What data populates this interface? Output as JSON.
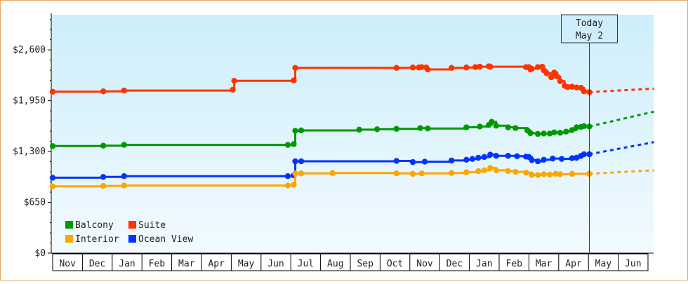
{
  "chart_data": {
    "type": "line",
    "title": "",
    "xlabel": "",
    "ylabel": "",
    "y_ticks": [
      "$0",
      "$650",
      "$1,300",
      "$1,950",
      "$2,600"
    ],
    "y_tick_values": [
      0,
      650,
      1300,
      1950,
      2600
    ],
    "ylim": [
      0,
      3050
    ],
    "x_tick_labels": [
      "Nov",
      "Dec",
      "Jan",
      "Feb",
      "Mar",
      "Apr",
      "May",
      "Jun",
      "Jul",
      "Aug",
      "Sep",
      "Oct",
      "Nov",
      "Dec",
      "Jan",
      "Feb",
      "Mar",
      "Apr",
      "May",
      "Jun"
    ],
    "xlim": [
      0,
      20
    ],
    "grid": false,
    "legend_position": "bottom-left",
    "today": {
      "line1": "Today",
      "line2": "May 2",
      "x": 18.03
    },
    "colors": {
      "Balcony": "#009900",
      "Suite": "#ff3300",
      "Interior": "#ffa500",
      "Ocean View": "#0033ff",
      "bg_top": "#cdeefa",
      "bg_bottom": "#f2faff"
    },
    "series": [
      {
        "name": "Suite",
        "points": [
          [
            0,
            2065
          ],
          [
            1.7,
            2070
          ],
          [
            2.4,
            2080
          ],
          [
            6.05,
            2090
          ],
          [
            6.1,
            2205
          ],
          [
            8.1,
            2210
          ],
          [
            8.15,
            2370
          ],
          [
            11.55,
            2370
          ],
          [
            12.1,
            2375
          ],
          [
            12.3,
            2375
          ],
          [
            12.4,
            2380
          ],
          [
            12.55,
            2375
          ],
          [
            12.6,
            2350
          ],
          [
            13.4,
            2370
          ],
          [
            13.9,
            2375
          ],
          [
            14.2,
            2380
          ],
          [
            14.35,
            2385
          ],
          [
            14.65,
            2390
          ],
          [
            14.7,
            2385
          ],
          [
            15.9,
            2380
          ],
          [
            16.0,
            2380
          ],
          [
            16.05,
            2350
          ],
          [
            16.1,
            2360
          ],
          [
            16.3,
            2380
          ],
          [
            16.45,
            2385
          ],
          [
            16.5,
            2340
          ],
          [
            16.6,
            2300
          ],
          [
            16.75,
            2250
          ],
          [
            16.85,
            2310
          ],
          [
            16.95,
            2260
          ],
          [
            17.05,
            2200
          ],
          [
            17.2,
            2140
          ],
          [
            17.3,
            2125
          ],
          [
            17.45,
            2130
          ],
          [
            17.6,
            2120
          ],
          [
            17.75,
            2115
          ],
          [
            17.85,
            2070
          ],
          [
            18.03,
            2060
          ]
        ],
        "projection": [
          [
            18.03,
            2060
          ],
          [
            20.2,
            2105
          ]
        ]
      },
      {
        "name": "Balcony",
        "points": [
          [
            0,
            1370
          ],
          [
            1.7,
            1375
          ],
          [
            2.4,
            1385
          ],
          [
            7.9,
            1385
          ],
          [
            8.1,
            1395
          ],
          [
            8.15,
            1565
          ],
          [
            8.35,
            1570
          ],
          [
            10.3,
            1580
          ],
          [
            10.9,
            1585
          ],
          [
            11.55,
            1590
          ],
          [
            12.35,
            1600
          ],
          [
            12.6,
            1595
          ],
          [
            13.9,
            1610
          ],
          [
            14.35,
            1620
          ],
          [
            14.65,
            1640
          ],
          [
            14.75,
            1680
          ],
          [
            14.9,
            1630
          ],
          [
            15.3,
            1610
          ],
          [
            15.55,
            1600
          ],
          [
            15.95,
            1570
          ],
          [
            16.05,
            1535
          ],
          [
            16.3,
            1525
          ],
          [
            16.5,
            1530
          ],
          [
            16.7,
            1530
          ],
          [
            16.85,
            1545
          ],
          [
            17.05,
            1540
          ],
          [
            17.25,
            1555
          ],
          [
            17.45,
            1575
          ],
          [
            17.6,
            1610
          ],
          [
            17.75,
            1615
          ],
          [
            17.85,
            1625
          ],
          [
            18.03,
            1620
          ]
        ],
        "projection": [
          [
            18.03,
            1620
          ],
          [
            20.2,
            1810
          ]
        ]
      },
      {
        "name": "Ocean View",
        "points": [
          [
            0,
            965
          ],
          [
            1.7,
            975
          ],
          [
            2.4,
            985
          ],
          [
            7.9,
            985
          ],
          [
            8.1,
            995
          ],
          [
            8.15,
            1175
          ],
          [
            8.35,
            1175
          ],
          [
            11.55,
            1180
          ],
          [
            12.1,
            1165
          ],
          [
            12.5,
            1170
          ],
          [
            13.4,
            1185
          ],
          [
            13.9,
            1195
          ],
          [
            14.1,
            1205
          ],
          [
            14.3,
            1220
          ],
          [
            14.5,
            1230
          ],
          [
            14.7,
            1260
          ],
          [
            14.9,
            1245
          ],
          [
            15.3,
            1245
          ],
          [
            15.6,
            1240
          ],
          [
            15.9,
            1235
          ],
          [
            16.0,
            1230
          ],
          [
            16.1,
            1190
          ],
          [
            16.3,
            1175
          ],
          [
            16.5,
            1195
          ],
          [
            16.8,
            1210
          ],
          [
            17.1,
            1205
          ],
          [
            17.45,
            1215
          ],
          [
            17.6,
            1220
          ],
          [
            17.75,
            1245
          ],
          [
            17.85,
            1265
          ],
          [
            18.03,
            1265
          ]
        ],
        "projection": [
          [
            18.03,
            1265
          ],
          [
            20.2,
            1420
          ]
        ]
      },
      {
        "name": "Interior",
        "points": [
          [
            0,
            855
          ],
          [
            1.7,
            860
          ],
          [
            2.4,
            865
          ],
          [
            7.9,
            865
          ],
          [
            8.1,
            875
          ],
          [
            8.15,
            1020
          ],
          [
            8.35,
            1020
          ],
          [
            9.4,
            1025
          ],
          [
            11.55,
            1020
          ],
          [
            12.1,
            1015
          ],
          [
            12.4,
            1020
          ],
          [
            13.4,
            1025
          ],
          [
            13.9,
            1035
          ],
          [
            14.3,
            1050
          ],
          [
            14.5,
            1060
          ],
          [
            14.7,
            1090
          ],
          [
            14.9,
            1060
          ],
          [
            15.3,
            1050
          ],
          [
            15.55,
            1040
          ],
          [
            15.9,
            1030
          ],
          [
            16.1,
            1000
          ],
          [
            16.3,
            1000
          ],
          [
            16.5,
            1010
          ],
          [
            16.7,
            1005
          ],
          [
            16.9,
            1015
          ],
          [
            17.05,
            1010
          ],
          [
            17.45,
            1015
          ],
          [
            18.03,
            1015
          ]
        ],
        "projection": [
          [
            18.03,
            1015
          ],
          [
            20.2,
            1060
          ]
        ]
      }
    ],
    "legend": [
      {
        "label": "Balcony",
        "series": "Balcony"
      },
      {
        "label": "Suite",
        "series": "Suite"
      },
      {
        "label": "Interior",
        "series": "Interior"
      },
      {
        "label": "Ocean View",
        "series": "Ocean View"
      }
    ]
  }
}
